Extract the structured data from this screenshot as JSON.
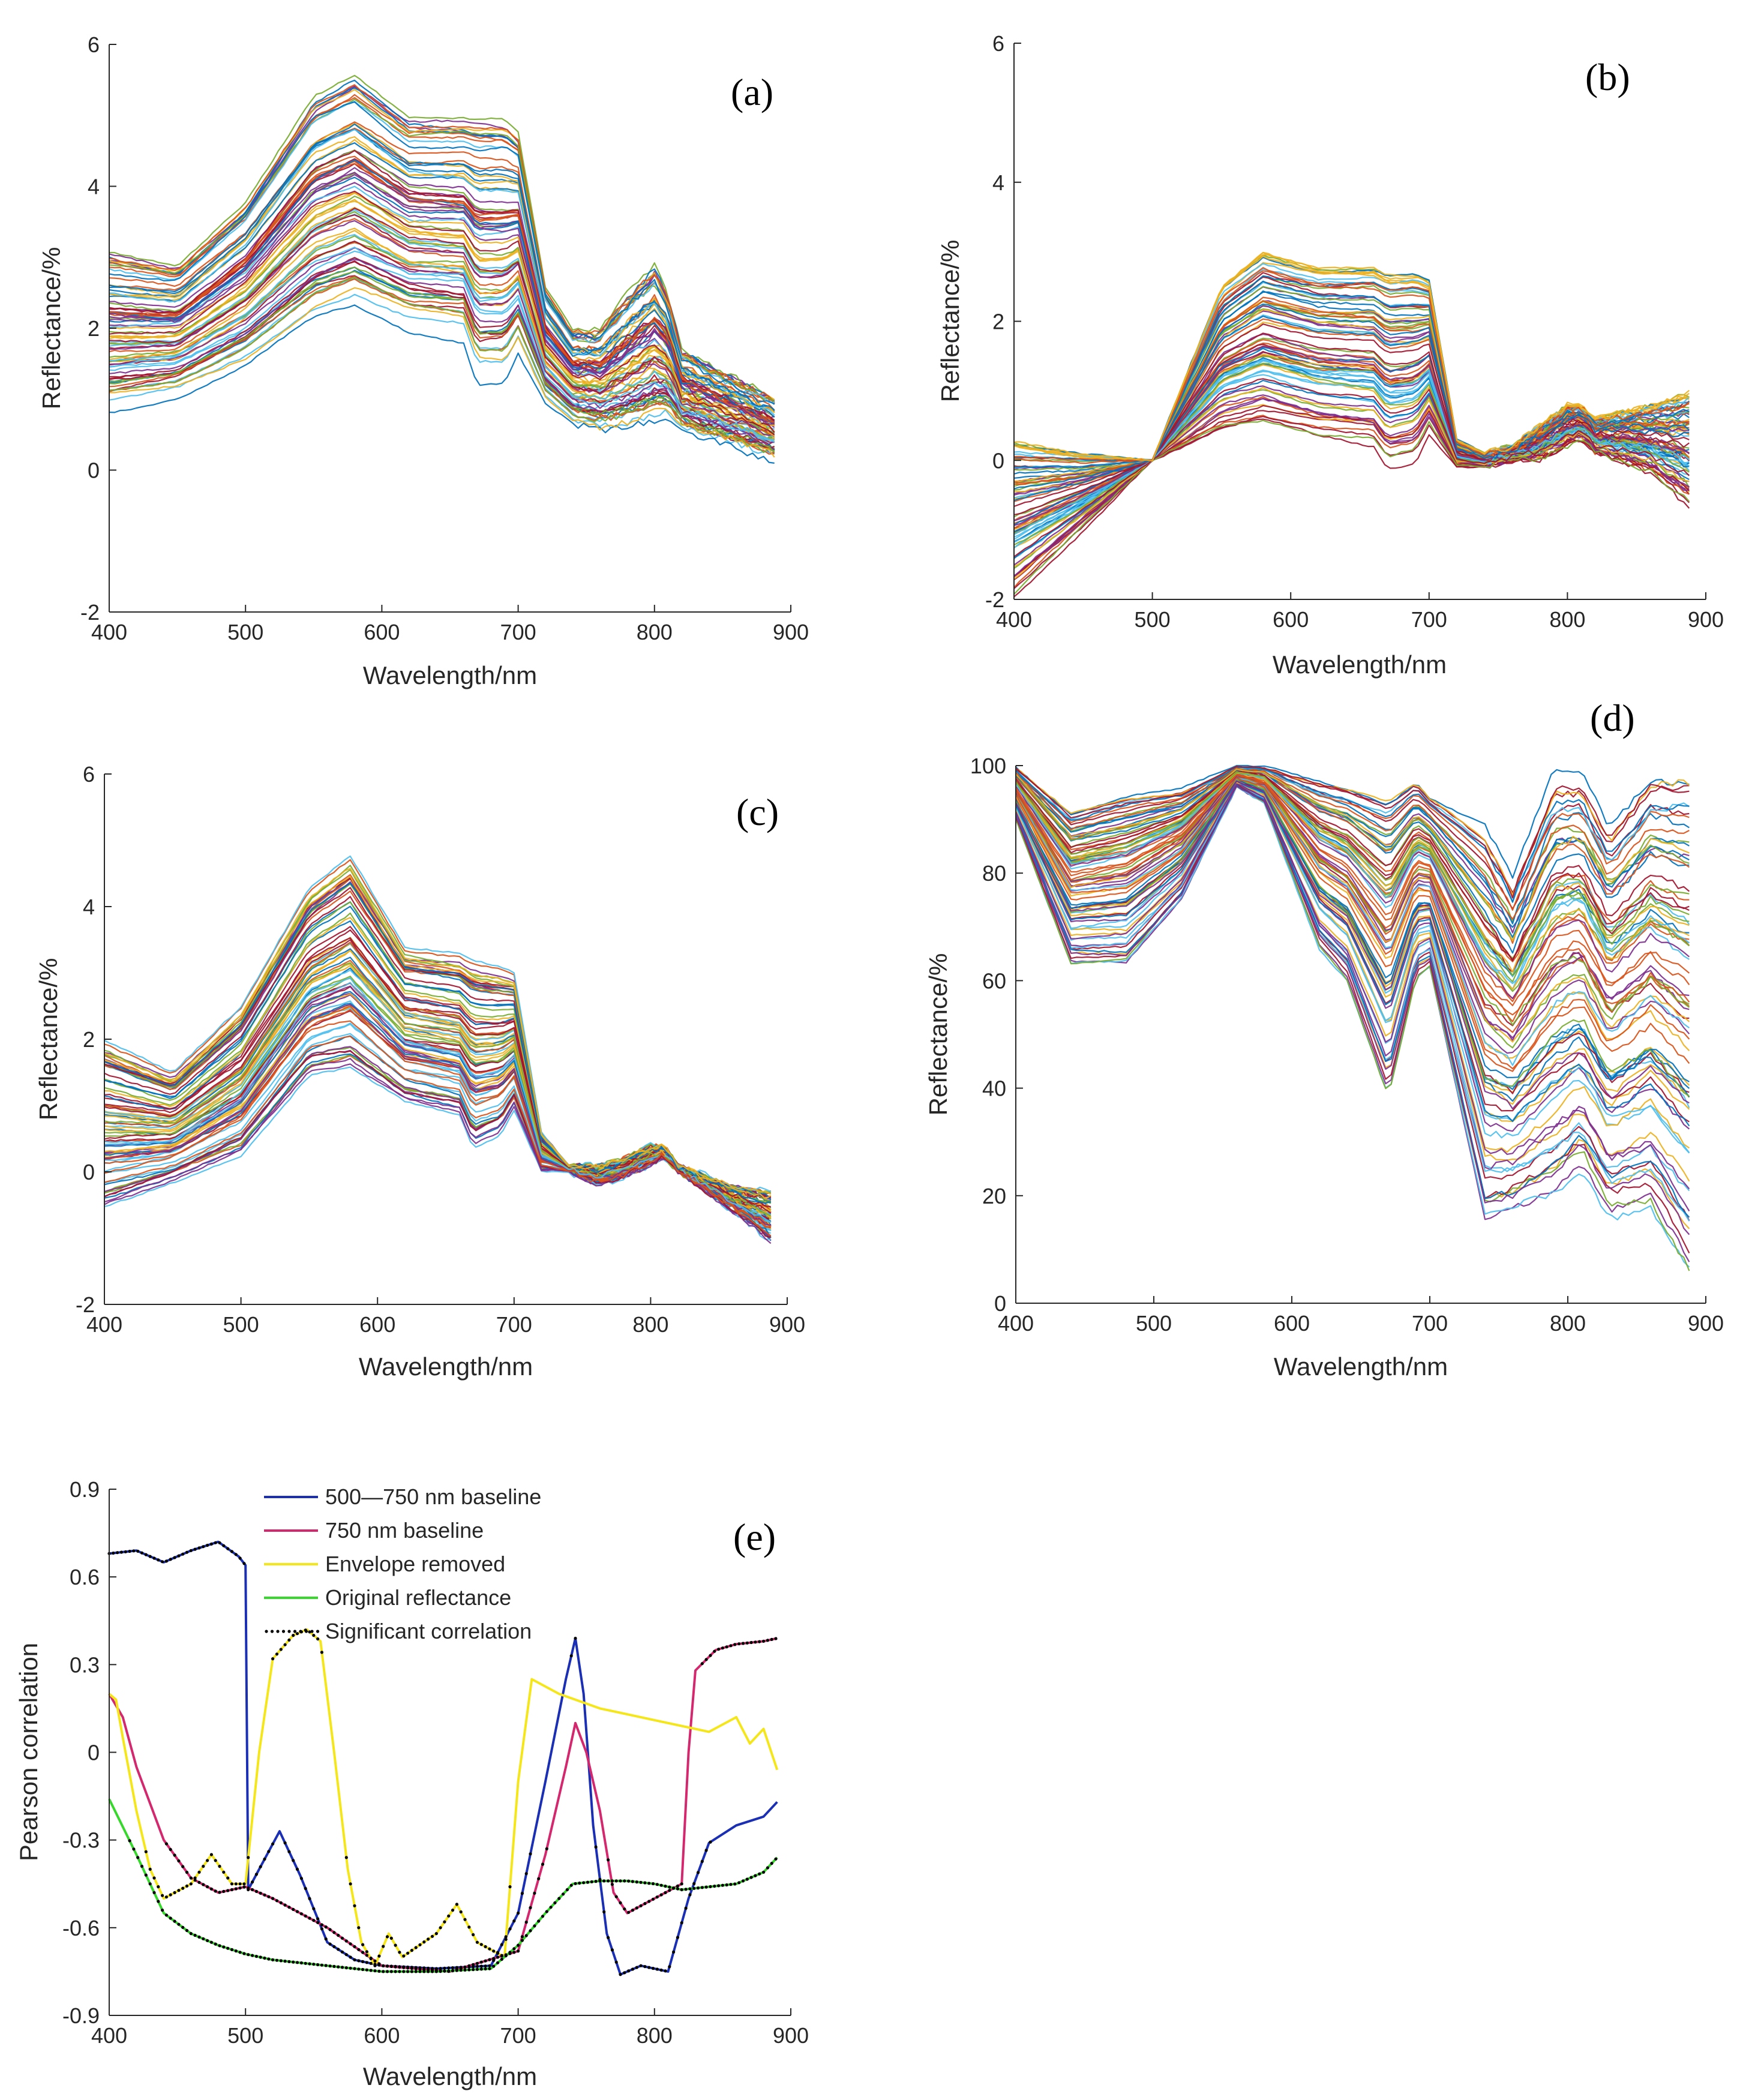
{
  "chart_data": [
    {
      "id": "a",
      "type": "line",
      "panel_label": "(a)",
      "xlabel": "Wavelength/nm",
      "ylabel": "Reflectance/%",
      "xlim": [
        400,
        900
      ],
      "ylim": [
        -2,
        6
      ],
      "xticks": [
        400,
        500,
        600,
        700,
        800,
        900
      ],
      "yticks": [
        -2,
        0,
        2,
        4,
        6
      ],
      "series_count": 80,
      "envelope": {
        "x": [
          400,
          450,
          500,
          550,
          580,
          620,
          660,
          670,
          690,
          700,
          720,
          740,
          760,
          780,
          800,
          810,
          820,
          860,
          890
        ],
        "lower": [
          0.8,
          1.0,
          1.4,
          2.0,
          2.2,
          1.9,
          1.8,
          1.2,
          1.2,
          1.6,
          0.9,
          0.6,
          0.5,
          0.5,
          0.6,
          0.7,
          0.5,
          0.3,
          0.1
        ],
        "upper": [
          3.1,
          2.9,
          3.8,
          5.3,
          5.6,
          5.0,
          5.0,
          5.0,
          5.0,
          4.8,
          2.6,
          2.0,
          2.0,
          2.5,
          2.9,
          2.5,
          1.7,
          1.3,
          1.0
        ]
      }
    },
    {
      "id": "b",
      "type": "line",
      "panel_label": "(b)",
      "xlabel": "Wavelength/nm",
      "ylabel": "Reflectance/%",
      "xlim": [
        400,
        900
      ],
      "ylim": [
        -2,
        6
      ],
      "xticks": [
        400,
        500,
        600,
        700,
        800,
        900
      ],
      "yticks": [
        -2,
        0,
        2,
        4,
        6
      ],
      "series_count": 80,
      "envelope": {
        "x": [
          400,
          450,
          500,
          550,
          580,
          620,
          660,
          670,
          690,
          700,
          720,
          740,
          760,
          780,
          800,
          810,
          820,
          860,
          890
        ],
        "lower": [
          -2.0,
          -1.0,
          0.0,
          0.4,
          0.5,
          0.3,
          0.2,
          -0.1,
          0.0,
          0.4,
          -0.1,
          -0.1,
          0.0,
          0.0,
          0.2,
          0.3,
          0.1,
          -0.2,
          -0.7
        ],
        "upper": [
          0.3,
          0.1,
          0.0,
          2.5,
          3.0,
          2.8,
          2.8,
          2.7,
          2.7,
          2.6,
          0.3,
          0.1,
          0.2,
          0.5,
          0.8,
          0.8,
          0.6,
          0.8,
          1.0
        ]
      }
    },
    {
      "id": "c",
      "type": "line",
      "panel_label": "(c)",
      "xlabel": "Wavelength/nm",
      "ylabel": "Reflectance/%",
      "xlim": [
        400,
        900
      ],
      "ylim": [
        -2,
        6
      ],
      "xticks": [
        400,
        500,
        600,
        700,
        800,
        900
      ],
      "yticks": [
        -2,
        0,
        2,
        4,
        6
      ],
      "series_count": 80,
      "envelope": {
        "x": [
          400,
          450,
          500,
          550,
          580,
          620,
          660,
          670,
          690,
          700,
          720,
          740,
          760,
          780,
          800,
          810,
          820,
          860,
          890
        ],
        "lower": [
          -0.6,
          -0.2,
          0.2,
          1.4,
          1.5,
          1.0,
          0.8,
          0.3,
          0.5,
          0.9,
          0.0,
          0.0,
          -0.2,
          -0.1,
          0.1,
          0.2,
          0.0,
          -0.6,
          -1.1
        ],
        "upper": [
          2.0,
          1.5,
          2.5,
          4.3,
          4.8,
          3.4,
          3.3,
          3.2,
          3.1,
          3.0,
          0.6,
          0.1,
          0.1,
          0.2,
          0.4,
          0.4,
          0.1,
          -0.2,
          -0.3
        ]
      }
    },
    {
      "id": "d",
      "type": "line",
      "panel_label": "(d)",
      "xlabel": "Wavelength/nm",
      "ylabel": "Reflectance/%",
      "xlim": [
        400,
        900
      ],
      "ylim": [
        0,
        100
      ],
      "xticks": [
        400,
        500,
        600,
        700,
        800,
        900
      ],
      "yticks": [
        0,
        20,
        40,
        60,
        80,
        100
      ],
      "series_count": 80,
      "envelope": {
        "x": [
          400,
          440,
          480,
          520,
          560,
          580,
          620,
          640,
          670,
          690,
          700,
          740,
          760,
          790,
          810,
          830,
          860,
          890
        ],
        "lower": [
          90,
          63,
          63,
          75,
          96,
          93,
          66,
          60,
          38,
          60,
          62,
          15,
          17,
          20,
          25,
          16,
          18,
          5
        ],
        "upper": [
          100,
          92,
          95,
          96,
          100,
          100,
          98,
          97,
          95,
          98,
          95,
          90,
          80,
          100,
          100,
          90,
          100,
          100
        ]
      }
    },
    {
      "id": "e",
      "type": "line",
      "panel_label": "(e)",
      "xlabel": "Wavelength/nm",
      "ylabel": "Pearson correlation",
      "xlim": [
        400,
        900
      ],
      "ylim": [
        -0.9,
        0.9
      ],
      "xticks": [
        400,
        500,
        600,
        700,
        800,
        900
      ],
      "yticks": [
        -0.9,
        -0.6,
        -0.3,
        0,
        0.3,
        0.6,
        0.9
      ],
      "series": [
        {
          "name": "500—750 nm baseline",
          "color": "#1a2fb4",
          "x": [
            400,
            420,
            440,
            460,
            480,
            495,
            500,
            502,
            510,
            525,
            540,
            560,
            580,
            600,
            640,
            680,
            700,
            720,
            735,
            742,
            748,
            755,
            765,
            775,
            790,
            810,
            825,
            840,
            860,
            880,
            890
          ],
          "y": [
            0.68,
            0.69,
            0.65,
            0.69,
            0.72,
            0.67,
            0.64,
            -0.47,
            -0.4,
            -0.27,
            -0.42,
            -0.65,
            -0.71,
            -0.73,
            -0.74,
            -0.73,
            -0.55,
            -0.1,
            0.25,
            0.39,
            0.2,
            -0.25,
            -0.62,
            -0.76,
            -0.73,
            -0.75,
            -0.5,
            -0.31,
            -0.25,
            -0.22,
            -0.17
          ]
        },
        {
          "name": "750 nm baseline",
          "color": "#d4286e",
          "x": [
            400,
            410,
            420,
            440,
            460,
            480,
            500,
            520,
            560,
            600,
            650,
            700,
            720,
            735,
            742,
            750,
            760,
            770,
            780,
            800,
            820,
            825,
            830,
            845,
            860,
            880,
            890
          ],
          "y": [
            0.2,
            0.12,
            -0.05,
            -0.3,
            -0.43,
            -0.48,
            -0.46,
            -0.5,
            -0.6,
            -0.73,
            -0.75,
            -0.68,
            -0.35,
            -0.05,
            0.1,
            0.0,
            -0.2,
            -0.48,
            -0.55,
            -0.5,
            -0.45,
            0.0,
            0.28,
            0.35,
            0.37,
            0.38,
            0.39
          ]
        },
        {
          "name": "Envelope removed",
          "color": "#f5e61a",
          "x": [
            400,
            405,
            410,
            420,
            430,
            440,
            460,
            475,
            490,
            500,
            510,
            520,
            535,
            545,
            555,
            565,
            575,
            585,
            595,
            605,
            615,
            640,
            655,
            670,
            690,
            700,
            710,
            730,
            760,
            800,
            840,
            860,
            870,
            880,
            890
          ],
          "y": [
            0.2,
            0.18,
            0.05,
            -0.2,
            -0.4,
            -0.5,
            -0.45,
            -0.35,
            -0.45,
            -0.45,
            0.0,
            0.32,
            0.4,
            0.42,
            0.38,
            0.0,
            -0.4,
            -0.65,
            -0.73,
            -0.62,
            -0.7,
            -0.62,
            -0.52,
            -0.65,
            -0.7,
            -0.1,
            0.25,
            0.2,
            0.15,
            0.11,
            0.07,
            0.12,
            0.03,
            0.08,
            -0.06
          ]
        },
        {
          "name": "Original reflectance",
          "color": "#36d92b",
          "x": [
            400,
            420,
            440,
            460,
            480,
            500,
            520,
            560,
            600,
            640,
            680,
            700,
            720,
            740,
            760,
            780,
            800,
            820,
            840,
            860,
            880,
            890
          ],
          "y": [
            -0.16,
            -0.35,
            -0.55,
            -0.62,
            -0.66,
            -0.69,
            -0.71,
            -0.73,
            -0.75,
            -0.75,
            -0.74,
            -0.66,
            -0.55,
            -0.45,
            -0.44,
            -0.44,
            -0.45,
            -0.47,
            -0.46,
            -0.45,
            -0.41,
            -0.36
          ]
        },
        {
          "name": "Significant correlation",
          "color": "#000000",
          "style": "dotted markers"
        }
      ]
    }
  ]
}
